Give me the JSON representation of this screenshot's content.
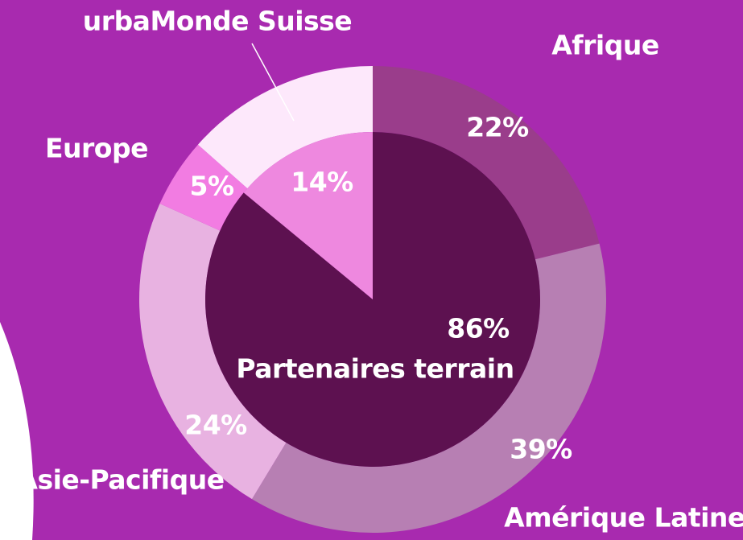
{
  "chart_data": {
    "type": "pie",
    "inner": {
      "categories": [
        "Partenaires terrain",
        null
      ],
      "values": [
        86,
        14
      ],
      "value_labels": [
        "86%",
        "14%"
      ],
      "colors": [
        "#5d1150",
        "#ee88df"
      ]
    },
    "outer": {
      "categories": [
        "Afrique",
        "Amérique Latine",
        "Asie-Pacifique",
        "Europe",
        "urbaMonde Suisse"
      ],
      "values": [
        22,
        39,
        24,
        5,
        14
      ],
      "value_labels": [
        "22%",
        "39%",
        "24%",
        "5%",
        null
      ],
      "colors": [
        "#9a3d8b",
        "#b77fb3",
        "#e8b2e1",
        "#f27ce2",
        "#fde8fb"
      ]
    }
  }
}
